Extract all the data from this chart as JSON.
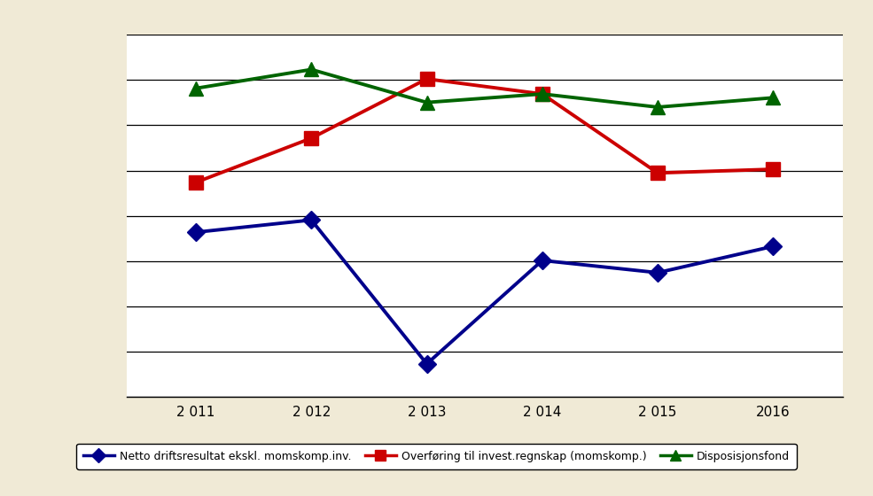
{
  "years": [
    2011,
    2012,
    2013,
    2014,
    2015,
    2016
  ],
  "blue_values": [
    -35,
    -22,
    -175,
    -65,
    -78,
    -50
  ],
  "red_values": [
    18,
    65,
    128,
    112,
    28,
    32
  ],
  "green_values": [
    118,
    138,
    103,
    112,
    98,
    108
  ],
  "blue_label": "Netto driftsresultat ekskl. momskomp.inv.",
  "red_label": "Overføring til invest.regnskap (momskomp.)",
  "green_label": "Disposisjonsfond",
  "blue_color": "#00008B",
  "red_color": "#CC0000",
  "green_color": "#006400",
  "fig_bg_color": "#F0EAD6",
  "plot_bg_color": "#FFFFFF",
  "grid_color": "#000000",
  "ylim": [
    -210,
    175
  ],
  "figsize": [
    9.85,
    5.6
  ],
  "dpi": 100,
  "x_labels": [
    "2 011",
    "2 012",
    "2 013",
    "2 014",
    "2 015",
    "2016"
  ],
  "grid_count": 9
}
